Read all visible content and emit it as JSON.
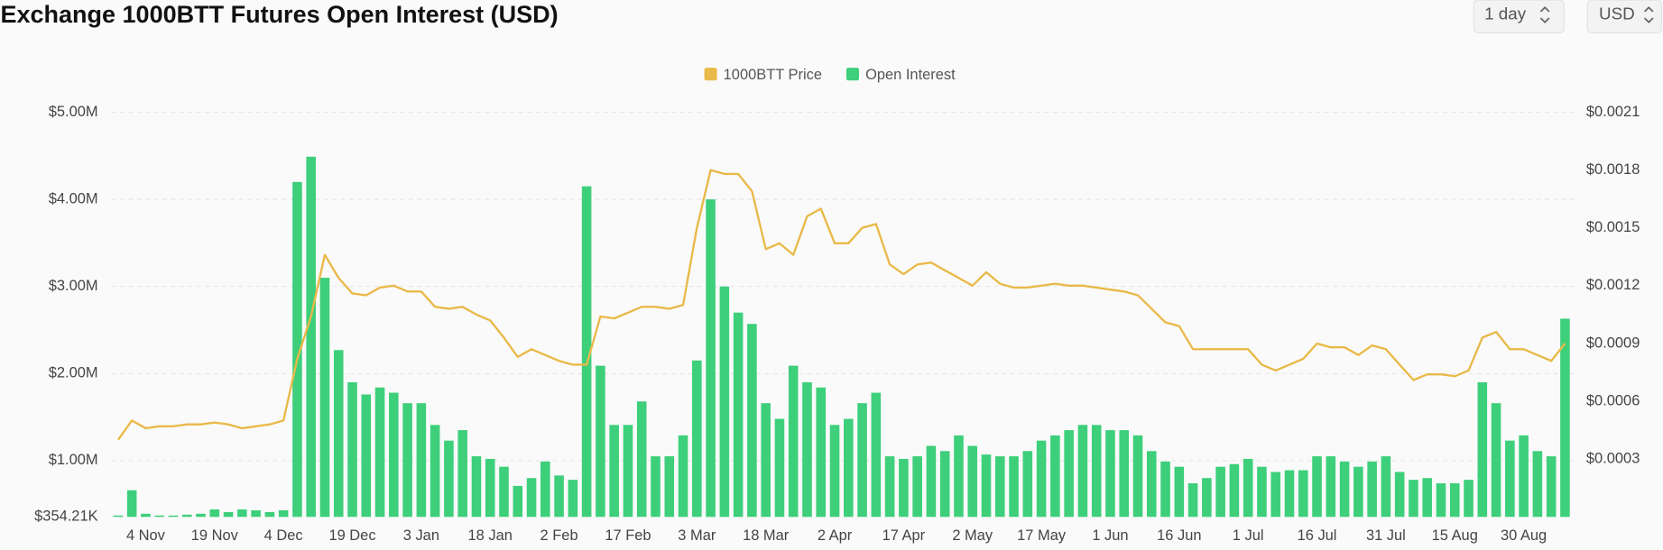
{
  "controls": [
    "1 day",
    "USD"
  ],
  "chart_data": {
    "type": "bar",
    "title": "Exchange 1000BTT Futures Open Interest (USD)",
    "categories": [
      null,
      null,
      "4 Nov",
      null,
      null,
      null,
      null,
      "19 Nov",
      null,
      null,
      null,
      null,
      "4 Dec",
      null,
      null,
      null,
      null,
      "19 Dec",
      null,
      null,
      null,
      null,
      "3 Jan",
      null,
      null,
      null,
      null,
      "18 Jan",
      null,
      null,
      null,
      null,
      "2 Feb",
      null,
      null,
      null,
      null,
      "17 Feb",
      null,
      null,
      null,
      null,
      "3 Mar",
      null,
      null,
      null,
      null,
      "18 Mar",
      null,
      null,
      null,
      null,
      "2 Apr",
      null,
      null,
      null,
      null,
      "17 Apr",
      null,
      null,
      null,
      null,
      "2 May",
      null,
      null,
      null,
      null,
      "17 May",
      null,
      null,
      null,
      null,
      "1 Jun",
      null,
      null,
      null,
      null,
      "16 Jun",
      null,
      null,
      null,
      null,
      "1 Jul",
      null,
      null,
      null,
      null,
      "16 Jul",
      null,
      null,
      null,
      null,
      "31 Jul",
      null,
      null,
      null,
      null,
      "15 Aug",
      null,
      null,
      null,
      null,
      "30 Aug",
      null,
      null,
      null
    ],
    "series": [
      {
        "name": "1000BTT Price",
        "type": "line",
        "axis": "y2",
        "color": "#e9b949",
        "values": [
          0.0004,
          0.0005,
          0.00046,
          0.00047,
          0.00047,
          0.00048,
          0.00048,
          0.00049,
          0.00048,
          0.00046,
          0.00047,
          0.00048,
          0.0005,
          0.00082,
          0.00104,
          0.00136,
          0.00124,
          0.00116,
          0.00115,
          0.00119,
          0.0012,
          0.00117,
          0.00117,
          0.00109,
          0.00108,
          0.00109,
          0.00105,
          0.00102,
          0.00093,
          0.00083,
          0.00087,
          0.00084,
          0.00081,
          0.00079,
          0.00079,
          0.00104,
          0.00103,
          0.00106,
          0.00109,
          0.00109,
          0.00108,
          0.0011,
          0.0015,
          0.0018,
          0.00178,
          0.00178,
          0.00169,
          0.00139,
          0.00142,
          0.00136,
          0.00156,
          0.0016,
          0.00142,
          0.00142,
          0.0015,
          0.00152,
          0.00131,
          0.00126,
          0.00131,
          0.00132,
          0.00128,
          0.00124,
          0.0012,
          0.00127,
          0.00121,
          0.00119,
          0.00119,
          0.0012,
          0.00121,
          0.0012,
          0.0012,
          0.00119,
          0.00118,
          0.00117,
          0.00115,
          0.00108,
          0.00101,
          0.00099,
          0.00087,
          0.00087,
          0.00087,
          0.00087,
          0.00087,
          0.00079,
          0.00076,
          0.00079,
          0.00082,
          0.0009,
          0.00088,
          0.00088,
          0.00084,
          0.00089,
          0.00087,
          0.00079,
          0.00071,
          0.00074,
          0.00074,
          0.00073,
          0.00076,
          0.00093,
          0.00096,
          0.00087,
          0.00087,
          0.00084,
          0.00081,
          0.0009
        ]
      },
      {
        "name": "Open Interest",
        "type": "bar",
        "color": "#3ecf7b",
        "values": [
          0.37,
          0.66,
          0.39,
          0.37,
          0.37,
          0.38,
          0.39,
          0.44,
          0.41,
          0.44,
          0.43,
          0.41,
          0.43,
          4.2,
          4.49,
          3.1,
          2.27,
          1.9,
          1.76,
          1.84,
          1.78,
          1.66,
          1.66,
          1.41,
          1.23,
          1.35,
          1.05,
          1.02,
          0.93,
          0.71,
          0.8,
          0.99,
          0.83,
          0.78,
          4.15,
          2.09,
          1.41,
          1.41,
          1.68,
          1.05,
          1.05,
          1.29,
          2.15,
          4.0,
          3.0,
          2.7,
          2.57,
          1.66,
          1.48,
          2.09,
          1.9,
          1.84,
          1.41,
          1.48,
          1.66,
          1.78,
          1.05,
          1.02,
          1.05,
          1.17,
          1.11,
          1.29,
          1.17,
          1.07,
          1.05,
          1.05,
          1.11,
          1.23,
          1.29,
          1.35,
          1.41,
          1.41,
          1.35,
          1.35,
          1.29,
          1.11,
          0.99,
          0.93,
          0.74,
          0.8,
          0.93,
          0.96,
          1.02,
          0.93,
          0.87,
          0.89,
          0.89,
          1.05,
          1.05,
          0.99,
          0.93,
          0.99,
          1.05,
          0.87,
          0.78,
          0.8,
          0.74,
          0.74,
          0.78,
          1.9,
          1.66,
          1.23,
          1.29,
          1.11,
          1.05,
          2.63
        ]
      }
    ],
    "ylim": [
      0.35421,
      5
    ],
    "yticks": [
      {
        "value": 0.35421,
        "label": "$354.21K"
      },
      {
        "value": 1,
        "label": "$1.00M"
      },
      {
        "value": 2,
        "label": "$2.00M"
      },
      {
        "value": 3,
        "label": "$3.00M"
      },
      {
        "value": 4,
        "label": "$4.00M"
      },
      {
        "value": 5,
        "label": "$5.00M"
      }
    ],
    "y2lim": [
      0,
      0.0021
    ],
    "y2ticks": [
      {
        "value": 0.0003,
        "label": "$0.0003"
      },
      {
        "value": 0.0006,
        "label": "$0.0006"
      },
      {
        "value": 0.0009,
        "label": "$0.0009"
      },
      {
        "value": 0.0012,
        "label": "$0.0012"
      },
      {
        "value": 0.0015,
        "label": "$0.0015"
      },
      {
        "value": 0.0018,
        "label": "$0.0018"
      },
      {
        "value": 0.0021,
        "label": "$0.0021"
      }
    ],
    "grid": true,
    "legend": "top"
  }
}
